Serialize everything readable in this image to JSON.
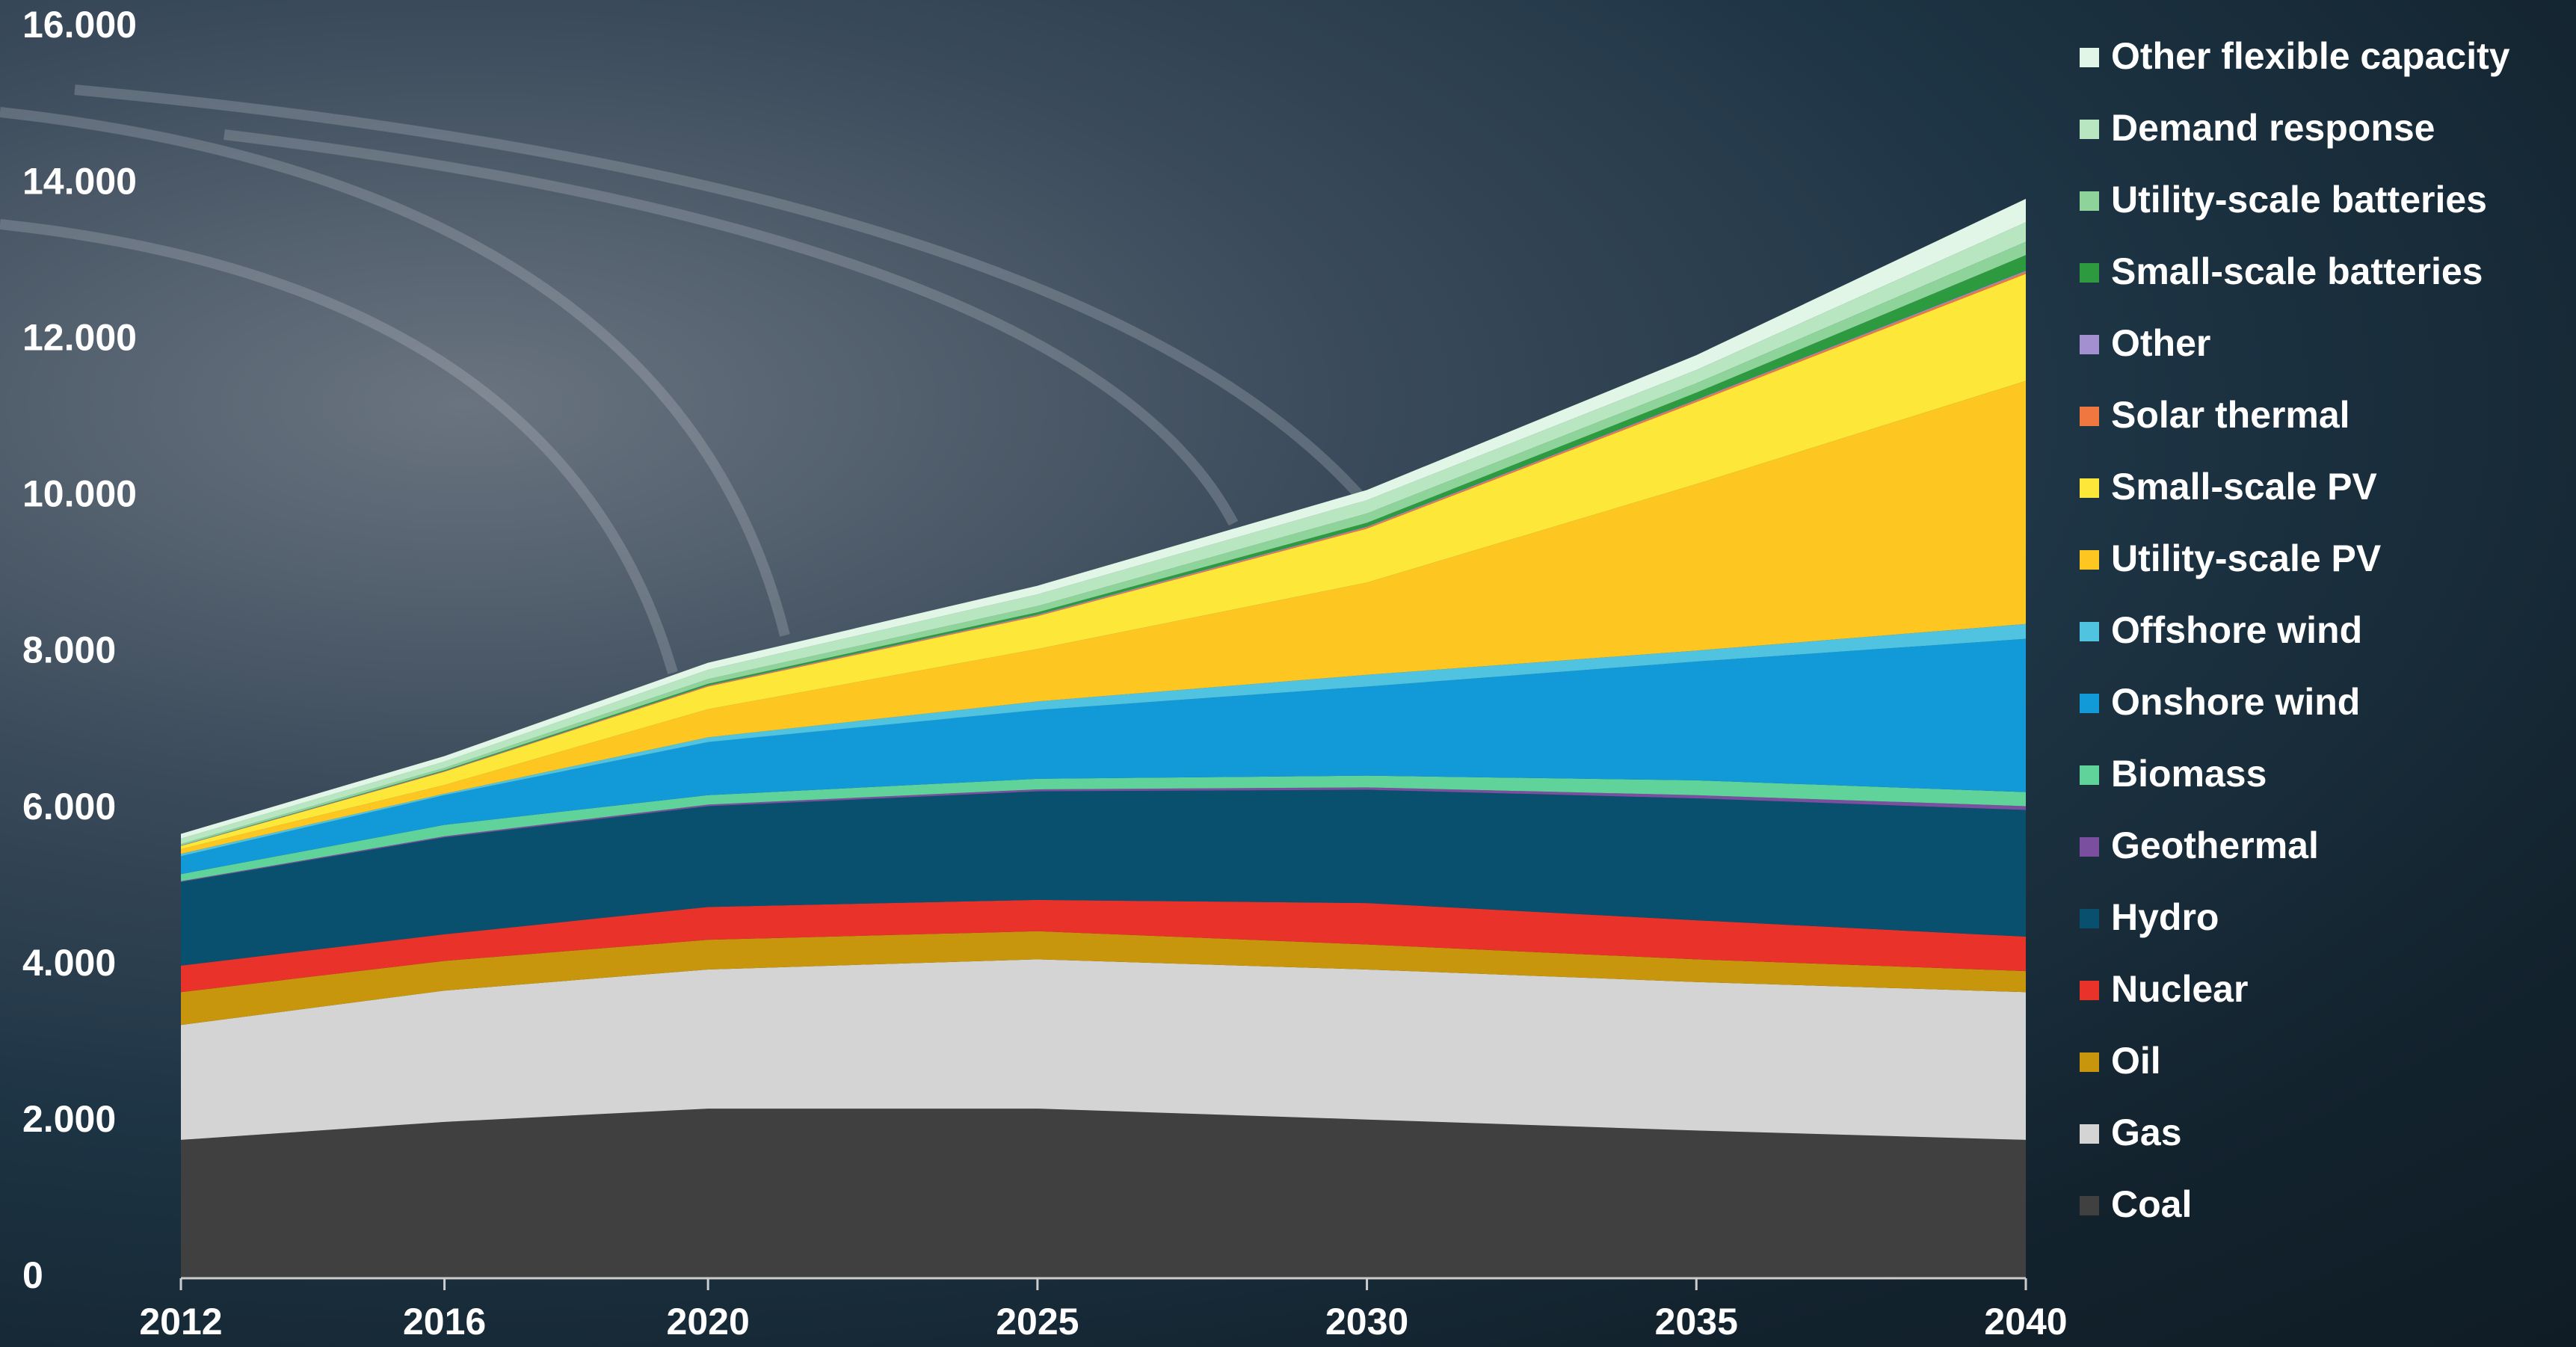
{
  "chart_data": {
    "type": "stacked_area",
    "x": [
      2012,
      2016,
      2020,
      2025,
      2030,
      2035,
      2040
    ],
    "xlim": [
      2012,
      2040
    ],
    "xticks": [
      2012,
      2016,
      2020,
      2025,
      2030,
      2035,
      2040
    ],
    "ylim": [
      0,
      16000
    ],
    "yticks": [
      0,
      {
        "value": 2000,
        "label": "2.000"
      },
      {
        "value": 4000,
        "label": "4.000"
      },
      {
        "value": 6000,
        "label": "6.000"
      },
      {
        "value": 8000,
        "label": "8.000"
      },
      {
        "value": 10000,
        "label": "10.000"
      },
      {
        "value": 12000,
        "label": "12.000"
      },
      {
        "value": 14000,
        "label": "14.000"
      },
      {
        "value": 16000,
        "label": "16.000"
      }
    ],
    "grid": false,
    "series": [
      {
        "name": "Coal",
        "color": "#404040",
        "values": [
          1770,
          2000,
          2170,
          2170,
          2030,
          1890,
          1770
        ]
      },
      {
        "name": "Gas",
        "color": "#d4d4d4",
        "values": [
          1470,
          1680,
          1780,
          1910,
          1920,
          1900,
          1890
        ]
      },
      {
        "name": "Oil",
        "color": "#c8960c",
        "values": [
          420,
          380,
          380,
          360,
          320,
          290,
          270
        ]
      },
      {
        "name": "Nuclear",
        "color": "#e8322a",
        "values": [
          340,
          340,
          420,
          400,
          530,
          500,
          440
        ]
      },
      {
        "name": "Hydro",
        "color": "#08506e",
        "values": [
          1070,
          1240,
          1290,
          1390,
          1450,
          1560,
          1620
        ]
      },
      {
        "name": "Geothermal",
        "color": "#7b4fa0",
        "values": [
          10,
          15,
          20,
          25,
          30,
          40,
          50
        ]
      },
      {
        "name": "Biomass",
        "color": "#5fd39a",
        "values": [
          90,
          145,
          120,
          135,
          150,
          190,
          180
        ]
      },
      {
        "name": "Onshore wind",
        "color": "#129ad8",
        "values": [
          230,
          380,
          680,
          880,
          1140,
          1520,
          1960
        ]
      },
      {
        "name": "Offshore wind",
        "color": "#4fc3e0",
        "values": [
          30,
          20,
          60,
          110,
          150,
          140,
          190
        ]
      },
      {
        "name": "Utility-scale PV",
        "color": "#fdc620",
        "values": [
          60,
          110,
          360,
          670,
          1180,
          2130,
          3110
        ]
      },
      {
        "name": "Small-scale PV",
        "color": "#fde83a",
        "values": [
          40,
          170,
          290,
          420,
          690,
          1050,
          1370
        ]
      },
      {
        "name": "Solar thermal",
        "color": "#f07840",
        "values": [
          0,
          5,
          10,
          10,
          15,
          20,
          25
        ]
      },
      {
        "name": "Other",
        "color": "#a390d0",
        "values": [
          5,
          5,
          5,
          10,
          10,
          10,
          15
        ]
      },
      {
        "name": "Small-scale batteries",
        "color": "#2e9a40",
        "values": [
          0,
          10,
          20,
          30,
          50,
          90,
          200
        ]
      },
      {
        "name": "Utility-scale batteries",
        "color": "#8dd39a",
        "values": [
          20,
          30,
          60,
          80,
          120,
          120,
          170
        ]
      },
      {
        "name": "Demand response",
        "color": "#b8e6c0",
        "values": [
          70,
          80,
          120,
          150,
          170,
          170,
          250
        ]
      },
      {
        "name": "Other flexible capacity",
        "color": "#e2f6e8",
        "values": [
          60,
          70,
          90,
          110,
          130,
          190,
          300
        ]
      }
    ]
  }
}
